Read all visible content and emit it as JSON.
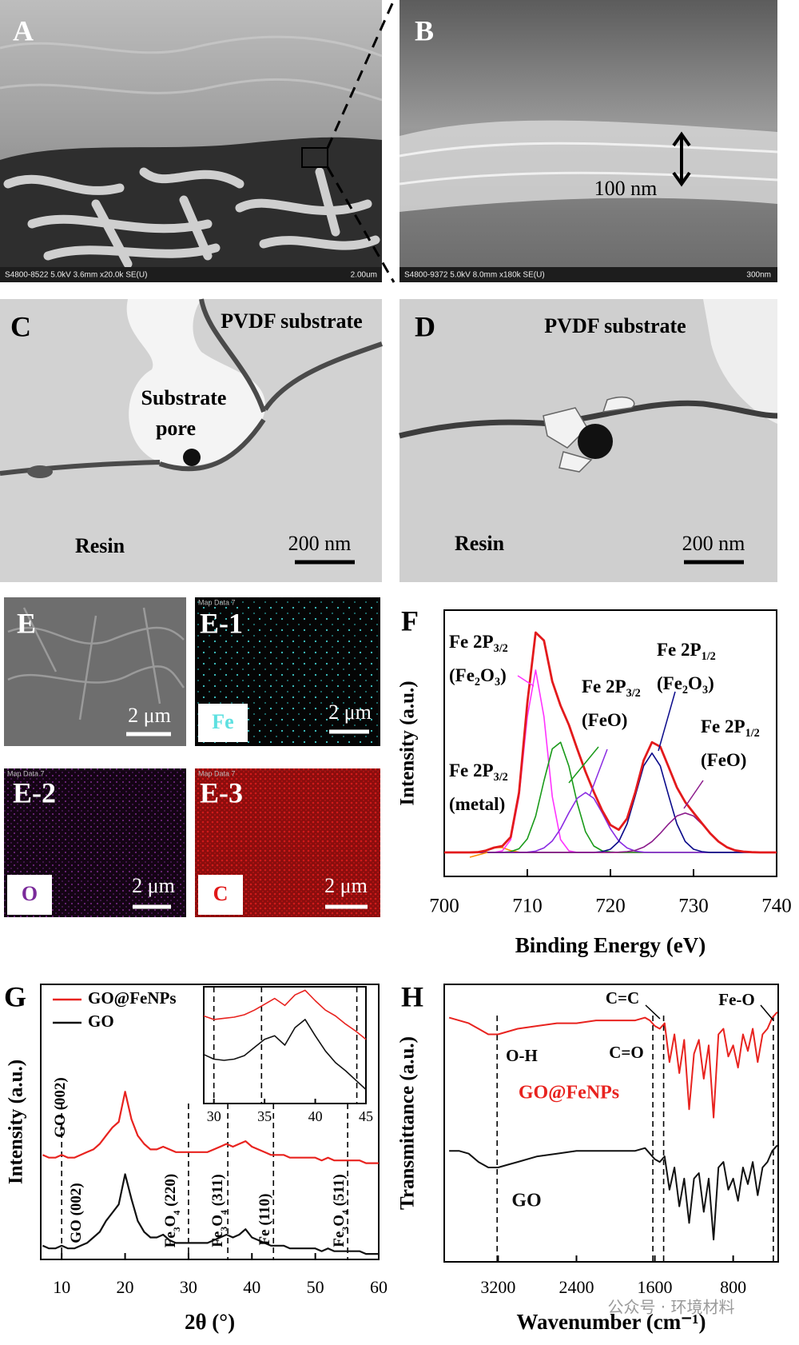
{
  "panels": {
    "a": {
      "label": "A",
      "info": "S4800-8522 5.0kV 3.6mm x20.0k SE(U)",
      "scale": "2.00um"
    },
    "b": {
      "label": "B",
      "info": "S4800-9372 5.0kV 8.0mm x180k SE(U)",
      "scale": "300nm",
      "thickness": "100 nm"
    },
    "c": {
      "label": "C",
      "substrate": "PVDF substrate",
      "pore": [
        "Substrate",
        "pore"
      ],
      "resin": "Resin",
      "scale": "200 nm"
    },
    "d": {
      "label": "D",
      "substrate": "PVDF substrate",
      "resin": "Resin",
      "scale": "200 nm"
    },
    "e": {
      "label": "E",
      "scale": "2 μm"
    },
    "e1": {
      "label": "E-1",
      "map": "Map Data 7",
      "element": "Fe",
      "scale": "2 μm"
    },
    "e2": {
      "label": "E-2",
      "map": "Map Data 7",
      "element": "O",
      "scale": "2 μm"
    },
    "e3": {
      "label": "E-3",
      "map": "Map Data 7",
      "element": "C",
      "scale": "2 μm"
    }
  },
  "watermark": "公众号 · 环境材料",
  "chart_data": [
    {
      "type": "line",
      "panel_label": "F",
      "xlabel": "Binding Energy (eV)",
      "ylabel": "Intensity (a.u.)",
      "xlim": [
        700,
        740
      ],
      "ylim": [
        0,
        1
      ],
      "xticks": [
        700,
        710,
        720,
        730,
        740
      ],
      "x": [
        700,
        701,
        702,
        703,
        704,
        705,
        706,
        707,
        708,
        709,
        710,
        711,
        712,
        713,
        714,
        715,
        716,
        717,
        718,
        719,
        720,
        721,
        722,
        723,
        724,
        725,
        726,
        727,
        728,
        729,
        730,
        731,
        732,
        733,
        734,
        735,
        736,
        737,
        738,
        739,
        740
      ],
      "series": [
        {
          "color": "#ff8c00",
          "values": [
            0.09,
            0.09,
            0.09,
            0.09,
            0.091,
            0.097,
            0.108,
            0.108,
            0.097,
            0.091,
            0.09,
            0.09,
            0.09,
            0.09,
            0.09,
            0.09,
            0.09,
            0.09,
            0.09,
            0.09,
            0.09,
            0.09,
            0.09,
            0.09,
            0.09,
            0.09,
            0.09,
            0.09,
            0.09,
            0.09,
            0.09,
            0.09,
            0.09,
            0.09,
            0.09,
            0.09,
            0.09,
            0.09,
            0.09,
            0.09,
            0.09
          ]
        },
        {
          "color": "#ff33ff",
          "values": [
            0.09,
            0.09,
            0.09,
            0.09,
            0.09,
            0.09,
            0.09,
            0.096,
            0.138,
            0.3,
            0.6,
            0.775,
            0.6,
            0.3,
            0.138,
            0.096,
            0.09,
            0.09,
            0.09,
            0.09,
            0.09,
            0.09,
            0.09,
            0.09,
            0.09,
            0.09,
            0.09,
            0.09,
            0.09,
            0.09,
            0.09,
            0.09,
            0.09,
            0.09,
            0.09,
            0.09,
            0.09,
            0.09,
            0.09,
            0.09,
            0.09
          ]
        },
        {
          "color": "#1a9a1a",
          "values": [
            0.09,
            0.09,
            0.09,
            0.09,
            0.09,
            0.09,
            0.09,
            0.09,
            0.093,
            0.104,
            0.141,
            0.226,
            0.359,
            0.479,
            0.504,
            0.414,
            0.276,
            0.168,
            0.114,
            0.096,
            0.092,
            0.09,
            0.09,
            0.09,
            0.09,
            0.09,
            0.09,
            0.09,
            0.09,
            0.09,
            0.09,
            0.09,
            0.09,
            0.09,
            0.09,
            0.09,
            0.09,
            0.09,
            0.09,
            0.09,
            0.09
          ]
        },
        {
          "color": "#8a2be2",
          "values": [
            0.09,
            0.09,
            0.09,
            0.09,
            0.09,
            0.09,
            0.09,
            0.09,
            0.09,
            0.09,
            0.091,
            0.095,
            0.107,
            0.133,
            0.179,
            0.239,
            0.293,
            0.315,
            0.293,
            0.239,
            0.179,
            0.133,
            0.107,
            0.095,
            0.091,
            0.09,
            0.09,
            0.09,
            0.09,
            0.09,
            0.09,
            0.09,
            0.09,
            0.09,
            0.09,
            0.09,
            0.09,
            0.09,
            0.09,
            0.09,
            0.09
          ]
        },
        {
          "color": "#0a0a8a",
          "values": [
            0.09,
            0.09,
            0.09,
            0.09,
            0.09,
            0.09,
            0.09,
            0.09,
            0.09,
            0.09,
            0.09,
            0.09,
            0.09,
            0.09,
            0.09,
            0.09,
            0.09,
            0.09,
            0.09,
            0.093,
            0.102,
            0.131,
            0.197,
            0.304,
            0.415,
            0.463,
            0.415,
            0.304,
            0.197,
            0.131,
            0.102,
            0.093,
            0.09,
            0.09,
            0.09,
            0.09,
            0.09,
            0.09,
            0.09,
            0.09,
            0.09
          ]
        },
        {
          "color": "#8b1a8b",
          "values": [
            0.09,
            0.09,
            0.09,
            0.09,
            0.09,
            0.09,
            0.09,
            0.09,
            0.09,
            0.09,
            0.09,
            0.09,
            0.09,
            0.09,
            0.09,
            0.09,
            0.09,
            0.09,
            0.09,
            0.09,
            0.09,
            0.091,
            0.093,
            0.098,
            0.11,
            0.131,
            0.162,
            0.197,
            0.227,
            0.238,
            0.227,
            0.197,
            0.162,
            0.131,
            0.11,
            0.098,
            0.093,
            0.091,
            0.09,
            0.09,
            0.09
          ]
        },
        {
          "color": "#e31a1c",
          "values": [
            0.09,
            0.09,
            0.09,
            0.09,
            0.091,
            0.097,
            0.108,
            0.114,
            0.148,
            0.315,
            0.652,
            0.916,
            0.886,
            0.732,
            0.641,
            0.569,
            0.479,
            0.393,
            0.317,
            0.248,
            0.193,
            0.175,
            0.217,
            0.317,
            0.436,
            0.504,
            0.487,
            0.411,
            0.334,
            0.279,
            0.239,
            0.2,
            0.162,
            0.131,
            0.11,
            0.098,
            0.093,
            0.091,
            0.09,
            0.09,
            0.09
          ]
        }
      ],
      "annotations": [
        [
          [
            "Fe 2P",
            "3/2"
          ],
          [
            "(Fe",
            "2",
            "O",
            "3",
            ")"
          ]
        ],
        [
          [
            "Fe 2P",
            "3/2"
          ],
          [
            "(FeO)"
          ]
        ],
        [
          [
            "Fe 2P",
            "1/2"
          ],
          [
            "(Fe",
            "2",
            "O",
            "3",
            ")"
          ]
        ],
        [
          [
            "Fe 2P",
            "1/2"
          ],
          [
            "(FeO)"
          ]
        ],
        [
          [
            "Fe 2P",
            "3/2"
          ],
          [
            "(metal)"
          ]
        ]
      ]
    },
    {
      "type": "line",
      "panel_label": "G",
      "xlabel": "2θ (°)",
      "ylabel": "Intensity (a.u.)",
      "xlim": [
        6.7,
        60
      ],
      "ylim": [
        0,
        1
      ],
      "xticks": [
        10,
        20,
        30,
        40,
        50,
        60
      ],
      "legend": "upper left",
      "x": [
        7,
        8,
        9,
        10,
        11,
        12,
        13,
        14,
        15,
        16,
        17,
        18,
        19,
        20,
        21,
        22,
        23,
        24,
        25,
        26,
        27,
        28,
        29,
        30,
        31,
        32,
        33,
        34,
        35,
        36,
        37,
        38,
        39,
        40,
        41,
        42,
        43,
        44,
        45,
        46,
        47,
        48,
        49,
        50,
        51,
        52,
        53,
        54,
        55,
        56,
        57,
        58,
        59,
        60
      ],
      "series": [
        {
          "name": "GO@FeNPs",
          "color": "#e8231f",
          "values": [
            0.38,
            0.37,
            0.37,
            0.38,
            0.37,
            0.37,
            0.38,
            0.39,
            0.4,
            0.42,
            0.45,
            0.48,
            0.5,
            0.61,
            0.51,
            0.45,
            0.42,
            0.4,
            0.4,
            0.41,
            0.4,
            0.39,
            0.39,
            0.39,
            0.39,
            0.39,
            0.39,
            0.4,
            0.41,
            0.42,
            0.41,
            0.42,
            0.43,
            0.41,
            0.4,
            0.39,
            0.38,
            0.38,
            0.38,
            0.37,
            0.37,
            0.37,
            0.37,
            0.37,
            0.36,
            0.37,
            0.36,
            0.36,
            0.36,
            0.36,
            0.36,
            0.35,
            0.35,
            0.35
          ]
        },
        {
          "name": "GO",
          "color": "#111111",
          "values": [
            0.05,
            0.04,
            0.04,
            0.05,
            0.04,
            0.04,
            0.05,
            0.06,
            0.08,
            0.1,
            0.14,
            0.17,
            0.2,
            0.31,
            0.22,
            0.14,
            0.1,
            0.08,
            0.08,
            0.09,
            0.07,
            0.06,
            0.06,
            0.06,
            0.06,
            0.06,
            0.06,
            0.07,
            0.08,
            0.09,
            0.08,
            0.09,
            0.11,
            0.08,
            0.07,
            0.06,
            0.05,
            0.05,
            0.05,
            0.04,
            0.04,
            0.04,
            0.04,
            0.04,
            0.03,
            0.04,
            0.03,
            0.03,
            0.03,
            0.03,
            0.03,
            0.02,
            0.02,
            0.02
          ]
        }
      ],
      "reference_lines": [
        10,
        30,
        36.2,
        43.4,
        55.1
      ],
      "annotations": [
        [
          [
            "GO (002)"
          ]
        ],
        [
          [
            "GO (002)"
          ]
        ],
        [
          [
            "Fe",
            "3",
            "O",
            "4",
            " (220)"
          ]
        ],
        [
          [
            "Fe",
            "3",
            "O",
            "4",
            " (311)"
          ]
        ],
        [
          [
            "Fe (110)"
          ]
        ],
        [
          [
            "Fe",
            "3",
            "O",
            "4",
            " (511)"
          ]
        ]
      ]
    },
    {
      "type": "line",
      "xlim": [
        29,
        45
      ],
      "ylim": [
        0,
        1
      ],
      "xticks": [
        30,
        35,
        40,
        45
      ],
      "x": [
        29,
        30,
        31,
        32,
        33,
        34,
        35,
        36,
        37,
        38,
        39,
        40,
        41,
        42,
        43,
        44,
        45
      ],
      "series": [
        {
          "color": "#e8231f",
          "values": [
            0.75,
            0.72,
            0.73,
            0.74,
            0.76,
            0.8,
            0.85,
            0.9,
            0.84,
            0.93,
            0.97,
            0.88,
            0.8,
            0.75,
            0.68,
            0.62,
            0.55
          ]
        },
        {
          "color": "#111111",
          "values": [
            0.42,
            0.38,
            0.37,
            0.38,
            0.41,
            0.48,
            0.55,
            0.58,
            0.5,
            0.65,
            0.72,
            0.58,
            0.45,
            0.35,
            0.28,
            0.2,
            0.12
          ]
        }
      ],
      "reference_lines": [
        30,
        34.7,
        44.1
      ]
    },
    {
      "type": "line",
      "panel_label": "H",
      "xlabel": "Wavenumber (cm⁻¹)",
      "ylabel": "Transmittance (a.u.)",
      "xlim": [
        3750,
        340
      ],
      "ylim": [
        0,
        1
      ],
      "xticks": [
        3200,
        2400,
        1600,
        800
      ],
      "legend": "inline",
      "x": [
        3700,
        3600,
        3500,
        3400,
        3300,
        3200,
        3100,
        3000,
        2800,
        2600,
        2400,
        2200,
        2000,
        1800,
        1700,
        1650,
        1600,
        1550,
        1500,
        1450,
        1400,
        1350,
        1300,
        1250,
        1200,
        1150,
        1100,
        1050,
        1000,
        950,
        900,
        850,
        800,
        750,
        700,
        650,
        600,
        550,
        500,
        450,
        400,
        350
      ],
      "series": [
        {
          "name": "GO@FeNPs",
          "color": "#e8231f",
          "values": [
            0.88,
            0.87,
            0.86,
            0.84,
            0.82,
            0.82,
            0.83,
            0.84,
            0.85,
            0.86,
            0.86,
            0.87,
            0.87,
            0.87,
            0.88,
            0.87,
            0.85,
            0.84,
            0.86,
            0.72,
            0.82,
            0.68,
            0.8,
            0.55,
            0.75,
            0.8,
            0.66,
            0.78,
            0.52,
            0.82,
            0.84,
            0.74,
            0.78,
            0.7,
            0.82,
            0.76,
            0.84,
            0.72,
            0.82,
            0.84,
            0.88,
            0.9
          ]
        },
        {
          "name": "GO",
          "color": "#111111",
          "values": [
            0.4,
            0.4,
            0.39,
            0.36,
            0.34,
            0.34,
            0.35,
            0.36,
            0.38,
            0.39,
            0.4,
            0.4,
            0.4,
            0.4,
            0.41,
            0.39,
            0.37,
            0.36,
            0.38,
            0.26,
            0.34,
            0.2,
            0.3,
            0.14,
            0.3,
            0.32,
            0.18,
            0.3,
            0.08,
            0.34,
            0.36,
            0.26,
            0.3,
            0.22,
            0.34,
            0.28,
            0.36,
            0.24,
            0.34,
            0.36,
            0.4,
            0.42
          ]
        }
      ],
      "reference_lines": [
        3210,
        1620,
        1510,
        390
      ],
      "annotations": [
        [
          [
            "C=C"
          ]
        ],
        [
          [
            "Fe-O"
          ]
        ],
        [
          [
            "O-H"
          ]
        ],
        [
          [
            "C=O"
          ]
        ]
      ]
    }
  ]
}
